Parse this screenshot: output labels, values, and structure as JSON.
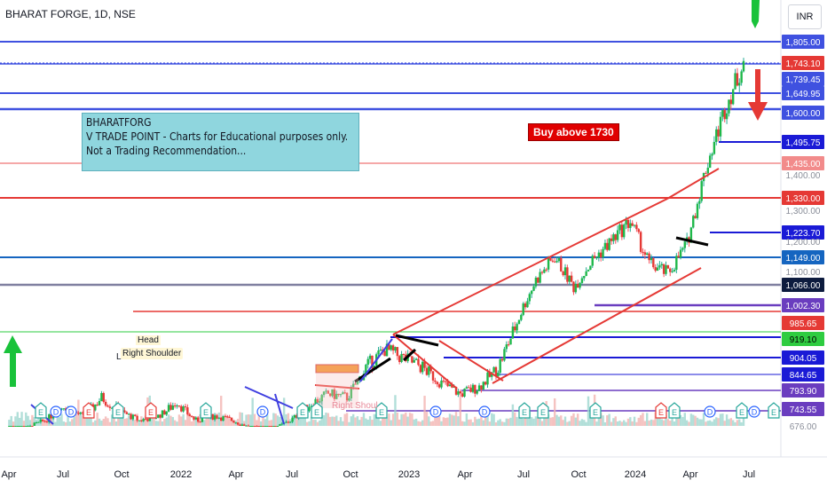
{
  "header": {
    "title": "BHARAT FORGE, 1D, NSE",
    "currency": "INR"
  },
  "note": {
    "line1": "BHARATFORG",
    "line2": "V TRADE POINT - Charts for Educational purposes only.",
    "line3": "Not a Trading Recommendation..."
  },
  "buy_label": "Buy above 1730",
  "pattern_labels": {
    "head": "Head",
    "right_shoulder": "Right Shoulder",
    "left_shoulder_partial": "L",
    "right_shoulder_faded": "Right Shoul"
  },
  "event_markers": [
    "E",
    "D",
    "D",
    "E",
    "E",
    "E",
    "E",
    "D",
    "E",
    "E",
    "E",
    "D",
    "D",
    "E",
    "E",
    "E",
    "E",
    "E",
    "D",
    "E",
    "D",
    "E"
  ],
  "chart_data": {
    "type": "line",
    "title": "BHARAT FORGE, 1D, NSE",
    "x_ticks": [
      "Apr",
      "Jul",
      "Oct",
      "2022",
      "Apr",
      "Jul",
      "Oct",
      "2023",
      "Apr",
      "Jul",
      "Oct",
      "2024",
      "Apr",
      "Jul"
    ],
    "price_levels": [
      {
        "value": "1,805.00",
        "color": "#3f51e0",
        "style": "horizontal"
      },
      {
        "value": "1,743.10",
        "color": "#e53935",
        "style": "current"
      },
      {
        "value": "1,739.45",
        "color": "#3f51e0",
        "style": "horizontal"
      },
      {
        "value": "1,649.95",
        "color": "#3f51e0",
        "style": "horizontal"
      },
      {
        "value": "1,600.00",
        "color": "#3f51e0",
        "style": "horizontal"
      },
      {
        "value": "1,495.75",
        "color": "#1a1ad6",
        "style": "horizontal"
      },
      {
        "value": "1,435.00",
        "color": "#f28b8b",
        "style": "horizontal"
      },
      {
        "value": "1,330.00",
        "color": "#e53935",
        "style": "horizontal"
      },
      {
        "value": "1,223.70",
        "color": "#1a1ad6",
        "style": "horizontal"
      },
      {
        "value": "1,149.00",
        "color": "#1565c0",
        "style": "horizontal"
      },
      {
        "value": "1,066.00",
        "color": "#0d1b3e",
        "style": "horizontal"
      },
      {
        "value": "1,002.30",
        "color": "#6a3dbf",
        "style": "horizontal"
      },
      {
        "value": "985.65",
        "color": "#e53935",
        "style": "horizontal"
      },
      {
        "value": "919.10",
        "color": "#2ecc40",
        "style": "horizontal"
      },
      {
        "value": "904.05",
        "color": "#1a1ad6",
        "style": "horizontal"
      },
      {
        "value": "844.65",
        "color": "#1a1ad6",
        "style": "horizontal"
      },
      {
        "value": "793.90",
        "color": "#6a3dbf",
        "style": "horizontal"
      },
      {
        "value": "743.55",
        "color": "#6a3dbf",
        "style": "horizontal"
      }
    ],
    "axis_ticks": [
      "1,400.00",
      "1,300.00",
      "1,200.00",
      "1,100.00",
      "676.00"
    ],
    "close_series": [
      [
        "2021-04",
        615
      ],
      [
        "2021-05",
        660
      ],
      [
        "2021-06",
        700
      ],
      [
        "2021-07",
        760
      ],
      [
        "2021-08",
        720
      ],
      [
        "2021-09",
        780
      ],
      [
        "2021-10",
        740
      ],
      [
        "2021-11",
        700
      ],
      [
        "2021-12",
        720
      ],
      [
        "2022-01",
        770
      ],
      [
        "2022-02",
        700
      ],
      [
        "2022-03",
        720
      ],
      [
        "2022-04",
        700
      ],
      [
        "2022-05",
        660
      ],
      [
        "2022-06",
        650
      ],
      [
        "2022-07",
        700
      ],
      [
        "2022-08",
        760
      ],
      [
        "2022-09",
        790
      ],
      [
        "2022-10",
        780
      ],
      [
        "2022-11",
        860
      ],
      [
        "2022-12",
        900
      ],
      [
        "2023-01",
        880
      ],
      [
        "2023-02",
        860
      ],
      [
        "2023-03",
        820
      ],
      [
        "2023-04",
        790
      ],
      [
        "2023-05",
        810
      ],
      [
        "2023-06",
        860
      ],
      [
        "2023-07",
        960
      ],
      [
        "2023-08",
        1080
      ],
      [
        "2023-09",
        1150
      ],
      [
        "2023-10",
        1060
      ],
      [
        "2023-11",
        1140
      ],
      [
        "2023-12",
        1200
      ],
      [
        "2024-01",
        1260
      ],
      [
        "2024-02",
        1130
      ],
      [
        "2024-03",
        1100
      ],
      [
        "2024-04",
        1190
      ],
      [
        "2024-05",
        1420
      ],
      [
        "2024-06",
        1600
      ],
      [
        "2024-07",
        1743
      ]
    ],
    "current_price": "1,743.10",
    "ylim": [
      676,
      1850
    ],
    "grid": false
  }
}
